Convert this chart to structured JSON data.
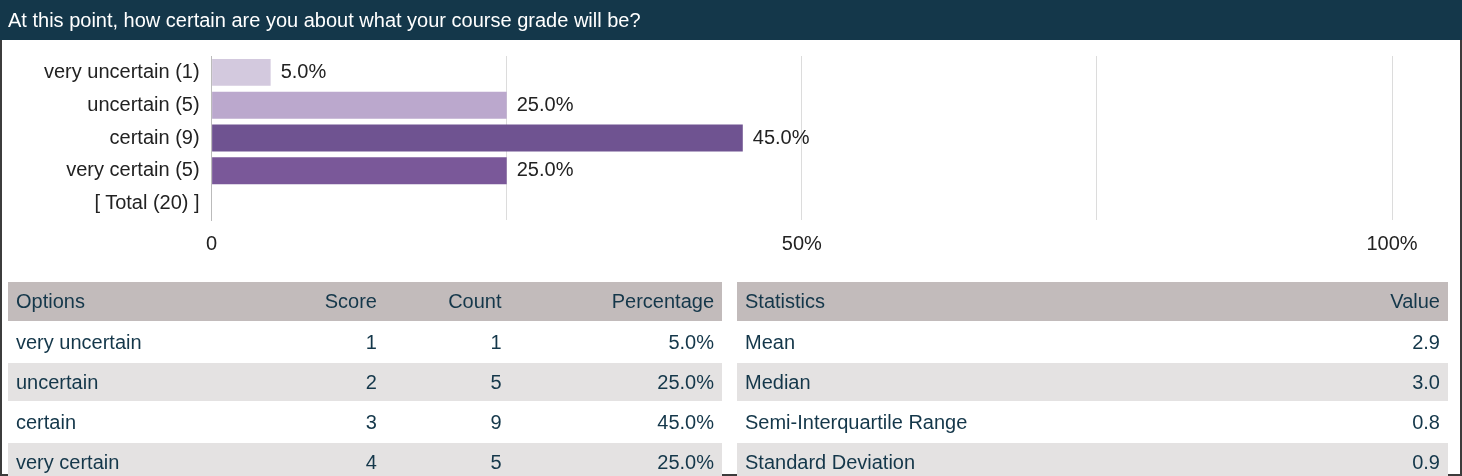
{
  "chart_data": {
    "type": "bar",
    "orientation": "horizontal",
    "title": "At this point, how certain are you about what your course grade will be?",
    "categories": [
      "very uncertain (1)",
      "uncertain (5)",
      "certain (9)",
      "very certain (5)",
      "[ Total (20) ]"
    ],
    "values": [
      5.0,
      25.0,
      45.0,
      25.0,
      null
    ],
    "colors": [
      "#d3c9de",
      "#bba8cd",
      "#6f5391",
      "#7a5899",
      "#ffffff"
    ],
    "value_labels": [
      "5.0%",
      "25.0%",
      "45.0%",
      "25.0%",
      null
    ],
    "xlim": [
      0,
      100
    ],
    "xticks": [
      0,
      {
        "value": 25,
        "label": null
      },
      {
        "value": 50,
        "label": "50%"
      },
      {
        "value": 75,
        "label": null
      },
      {
        "value": 100,
        "label": "100%"
      }
    ],
    "grid": "x",
    "legend": false,
    "annotations": [
      "Options",
      "Score",
      "Count",
      "Percentage",
      "very uncertain",
      "1",
      "1",
      "5.0%",
      "uncertain",
      "2",
      "5",
      "25.0%",
      "certain",
      "3",
      "9",
      "45.0%",
      "very certain",
      "4",
      "5",
      "25.0%",
      "Statistics",
      "Value",
      "Mean",
      "2.9",
      "Median",
      "3.0",
      "Semi-Interquartile Range",
      "0.8",
      "Standard Deviation",
      "0.9"
    ]
  }
}
